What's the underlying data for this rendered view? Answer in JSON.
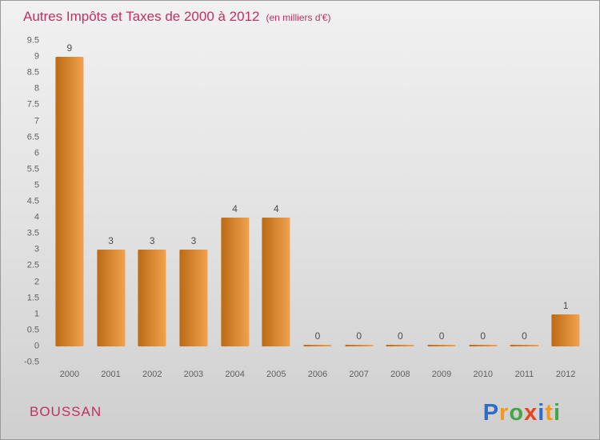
{
  "title": "Autres Impôts et Taxes de 2000 à 2012",
  "subtitle": "(en milliers d'€)",
  "colors": {
    "title_color": "#c22f63",
    "bar_dark": "#bc6a14",
    "bar_light": "#f2a24e",
    "axis_text": "#5f5f5f",
    "value_text": "#4d4d4d"
  },
  "footer": {
    "commune": "BOUSSAN",
    "logo": [
      {
        "ch": "P",
        "color": "#2f6bc6"
      },
      {
        "ch": "r",
        "color": "#f29a1f"
      },
      {
        "ch": "o",
        "color": "#45a549"
      },
      {
        "ch": "x",
        "color": "#e8431f"
      },
      {
        "ch": "i",
        "color": "#2f6bc6"
      },
      {
        "ch": "t",
        "color": "#f29a1f"
      },
      {
        "ch": "i",
        "color": "#45a549"
      }
    ]
  },
  "chart_data": {
    "type": "bar",
    "title": "Autres Impôts et Taxes de 2000 à 2012",
    "unit_note": "(en milliers d'€)",
    "categories": [
      "2000",
      "2001",
      "2002",
      "2003",
      "2004",
      "2005",
      "2006",
      "2007",
      "2008",
      "2009",
      "2010",
      "2011",
      "2012"
    ],
    "values": [
      9,
      3,
      3,
      3,
      4,
      4,
      0,
      0,
      0,
      0,
      0,
      0,
      1
    ],
    "ylabel": "",
    "xlabel": "",
    "ylim": [
      -0.5,
      9.5
    ],
    "ytick_step": 0.5,
    "yticks": [
      9.5,
      9,
      8.5,
      8,
      7.5,
      7,
      6.5,
      6,
      5.5,
      5,
      4.5,
      4,
      3.5,
      3,
      2.5,
      2,
      1.5,
      1,
      0.5,
      0,
      -0.5
    ],
    "grid": false,
    "legend": false
  }
}
